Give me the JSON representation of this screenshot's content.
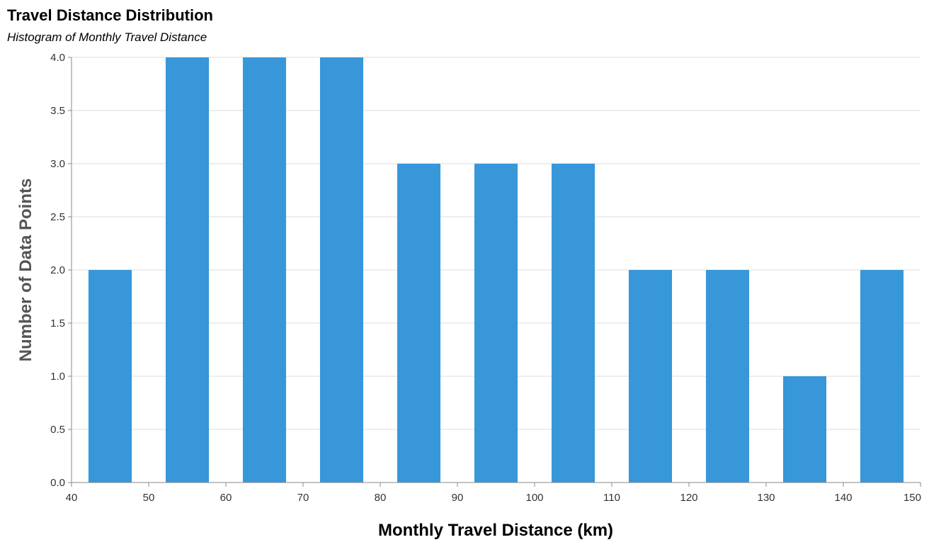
{
  "chart_data": {
    "type": "bar",
    "title": "Travel Distance Distribution",
    "subtitle": "Histogram of Monthly Travel Distance",
    "xlabel": "Monthly Travel Distance (km)",
    "ylabel": "Number of Data Points",
    "xlim": [
      40,
      150
    ],
    "ylim": [
      0,
      4
    ],
    "x_ticks": [
      40,
      50,
      60,
      70,
      80,
      90,
      100,
      110,
      120,
      130,
      140,
      150
    ],
    "y_ticks": [
      "0.0",
      "0.5",
      "1.0",
      "1.5",
      "2.0",
      "2.5",
      "3.0",
      "3.5",
      "4.0"
    ],
    "bins": [
      {
        "start": 40,
        "end": 50,
        "count": 2
      },
      {
        "start": 50,
        "end": 60,
        "count": 4
      },
      {
        "start": 60,
        "end": 70,
        "count": 4
      },
      {
        "start": 70,
        "end": 80,
        "count": 4
      },
      {
        "start": 80,
        "end": 90,
        "count": 3
      },
      {
        "start": 90,
        "end": 100,
        "count": 3
      },
      {
        "start": 100,
        "end": 110,
        "count": 3
      },
      {
        "start": 110,
        "end": 120,
        "count": 2
      },
      {
        "start": 120,
        "end": 130,
        "count": 2
      },
      {
        "start": 130,
        "end": 140,
        "count": 1
      },
      {
        "start": 140,
        "end": 150,
        "count": 2
      }
    ],
    "grid": true,
    "bar_color": "#3797d9",
    "x_title_color": "#000000",
    "y_title_color": "#555555"
  }
}
